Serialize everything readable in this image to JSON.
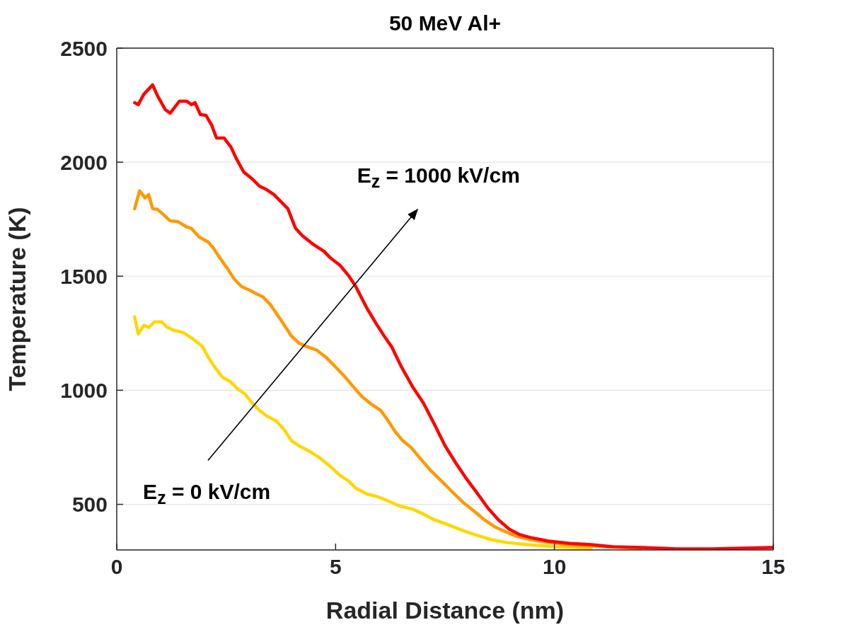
{
  "chart_data": {
    "type": "line",
    "title": "50 MeV Al+",
    "xlabel": "Radial Distance (nm)",
    "ylabel": "Temperature (K)",
    "xlim": [
      0,
      15
    ],
    "xticks": [
      0,
      5,
      10,
      15
    ],
    "ylim": [
      300,
      2500
    ],
    "yticks": [
      500,
      1000,
      1500,
      2000,
      2500
    ],
    "grid": "y",
    "marker": "none",
    "line_style": "solid",
    "annotations": [
      "E$_{z}$ = 1000 kV/cm",
      "E$_{z}$ = 0 kV/cm"
    ],
    "series": [
      {
        "color": "#ffd700",
        "x": [
          0.41,
          0.49,
          0.62,
          0.73,
          0.86,
          1.03,
          1.14,
          1.3,
          1.52,
          1.71,
          1.96,
          2.09,
          2.25,
          2.41,
          2.61,
          2.77,
          2.93,
          3.1,
          3.26,
          3.42,
          3.64,
          3.83,
          3.99,
          4.16,
          4.4,
          4.65,
          4.89,
          5.1,
          5.3,
          5.46,
          5.71,
          5.95,
          6.2,
          6.44,
          6.77,
          7.01,
          7.26,
          7.58,
          7.91,
          8.23,
          8.56,
          8.89,
          9.38,
          10.03,
          10.84
        ],
        "values": [
          1322,
          1247,
          1285,
          1275,
          1300,
          1300,
          1278,
          1263,
          1253,
          1229,
          1191,
          1145,
          1098,
          1058,
          1036,
          1005,
          984,
          943,
          912,
          888,
          866,
          826,
          779,
          757,
          733,
          702,
          664,
          627,
          602,
          571,
          546,
          534,
          515,
          494,
          478,
          457,
          432,
          410,
          385,
          364,
          345,
          333,
          323,
          314,
          308
        ]
      },
      {
        "color": "#ff9900",
        "x": [
          0.41,
          0.52,
          0.65,
          0.73,
          0.82,
          0.93,
          1.06,
          1.22,
          1.39,
          1.58,
          1.71,
          1.88,
          2.09,
          2.2,
          2.36,
          2.53,
          2.69,
          2.85,
          3.02,
          3.18,
          3.34,
          3.5,
          3.67,
          3.83,
          3.99,
          4.16,
          4.35,
          4.57,
          4.78,
          4.97,
          5.22,
          5.38,
          5.59,
          5.79,
          6.03,
          6.2,
          6.36,
          6.52,
          6.73,
          6.93,
          7.17,
          7.42,
          7.66,
          7.91,
          8.15,
          8.4,
          8.64,
          8.89,
          9.13,
          9.46,
          9.86,
          10.35,
          11.17,
          11.98
        ],
        "values": [
          1796,
          1874,
          1843,
          1858,
          1796,
          1793,
          1771,
          1743,
          1740,
          1718,
          1709,
          1672,
          1650,
          1626,
          1579,
          1533,
          1486,
          1455,
          1440,
          1424,
          1409,
          1378,
          1331,
          1285,
          1238,
          1207,
          1191,
          1176,
          1145,
          1108,
          1058,
          1021,
          974,
          943,
          912,
          866,
          819,
          782,
          748,
          702,
          649,
          602,
          556,
          509,
          472,
          432,
          401,
          379,
          360,
          345,
          333,
          323,
          314,
          308
        ]
      },
      {
        "color": "#ff0000",
        "x": [
          0.41,
          0.49,
          0.62,
          0.82,
          0.93,
          1.11,
          1.22,
          1.43,
          1.6,
          1.71,
          1.79,
          1.91,
          2.04,
          2.17,
          2.28,
          2.45,
          2.61,
          2.74,
          2.9,
          3.1,
          3.26,
          3.42,
          3.59,
          3.75,
          3.91,
          4.08,
          4.24,
          4.48,
          4.73,
          4.89,
          5.1,
          5.3,
          5.46,
          5.71,
          5.95,
          6.11,
          6.28,
          6.49,
          6.77,
          7.01,
          7.26,
          7.5,
          7.75,
          7.99,
          8.23,
          8.48,
          8.72,
          8.97,
          9.21,
          9.46,
          9.86,
          10.35,
          10.84,
          11.33,
          11.98,
          12.8,
          13.6,
          15
        ],
        "values": [
          2261,
          2252,
          2298,
          2339,
          2292,
          2230,
          2215,
          2267,
          2267,
          2252,
          2261,
          2209,
          2205,
          2162,
          2106,
          2106,
          2066,
          2013,
          1957,
          1926,
          1895,
          1880,
          1858,
          1827,
          1796,
          1712,
          1678,
          1641,
          1610,
          1579,
          1548,
          1502,
          1455,
          1362,
          1285,
          1238,
          1191,
          1108,
          1012,
          943,
          850,
          757,
          680,
          612,
          550,
          484,
          432,
          391,
          367,
          354,
          339,
          329,
          323,
          314,
          311,
          305,
          305,
          311
        ]
      }
    ]
  }
}
